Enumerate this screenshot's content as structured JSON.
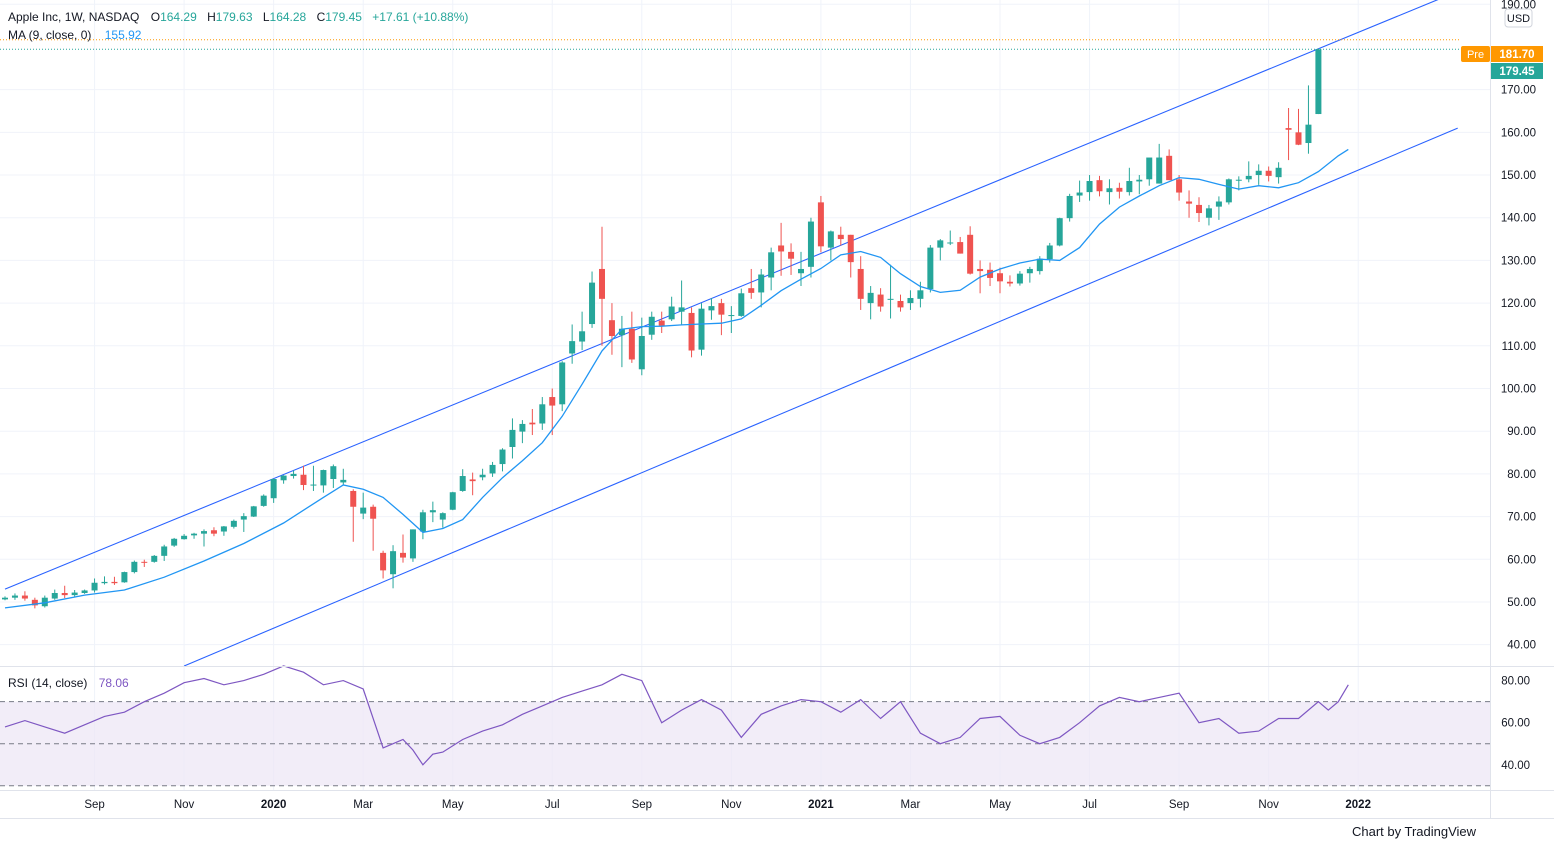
{
  "header": {
    "name": "Apple Inc, 1W, NASDAQ",
    "o_label": "O",
    "o": "164.29",
    "h_label": "H",
    "h": "179.63",
    "l_label": "L",
    "l": "164.28",
    "c_label": "C",
    "c": "179.45",
    "change": "+17.61 (+10.88%)",
    "ma_label": "MA (9, close, 0)",
    "ma_value": "155.92",
    "rsi_label": "RSI (14, close)",
    "rsi_value": "78.06"
  },
  "currency": "USD",
  "premarket": {
    "label": "Pre",
    "value": "181.70",
    "color": "#ff9800"
  },
  "last_price": {
    "value": "179.45",
    "color": "#26a69a"
  },
  "footer": "Chart by TradingView",
  "colors": {
    "up": "#26a69a",
    "down": "#ef5350",
    "ma": "#2196f3",
    "channel": "#2962ff",
    "rsi": "#7e57c2"
  },
  "chart_data": {
    "type": "candlestick",
    "symbol": "AAPL",
    "interval": "1W",
    "price_axis": {
      "ticks": [
        40,
        50,
        60,
        70,
        80,
        90,
        100,
        110,
        120,
        130,
        140,
        150,
        160,
        170,
        190
      ],
      "ylim": [
        35,
        191
      ]
    },
    "rsi_axis": {
      "ticks": [
        40,
        60,
        80
      ],
      "ylim": [
        28,
        86
      ],
      "bands": [
        30,
        50,
        70
      ]
    },
    "time_axis": [
      {
        "label": "Sep",
        "index": 9,
        "bold": false
      },
      {
        "label": "Nov",
        "index": 18,
        "bold": false
      },
      {
        "label": "2020",
        "index": 27,
        "bold": true
      },
      {
        "label": "Mar",
        "index": 36,
        "bold": false
      },
      {
        "label": "May",
        "index": 45,
        "bold": false
      },
      {
        "label": "Jul",
        "index": 55,
        "bold": false
      },
      {
        "label": "Sep",
        "index": 64,
        "bold": false
      },
      {
        "label": "Nov",
        "index": 73,
        "bold": false
      },
      {
        "label": "2021",
        "index": 82,
        "bold": true
      },
      {
        "label": "Mar",
        "index": 91,
        "bold": false
      },
      {
        "label": "May",
        "index": 100,
        "bold": false
      },
      {
        "label": "Jul",
        "index": 109,
        "bold": false
      },
      {
        "label": "Sep",
        "index": 118,
        "bold": false
      },
      {
        "label": "Nov",
        "index": 127,
        "bold": false
      },
      {
        "label": "2022",
        "index": 136,
        "bold": true
      }
    ],
    "channel": [
      {
        "x1": 0,
        "y1": 53,
        "x2": 146,
        "y2": 193
      },
      {
        "x1": 18,
        "y1": 35,
        "x2": 146,
        "y2": 161
      }
    ],
    "candles": [
      [
        50.6,
        51.3,
        50.4,
        51.0
      ],
      [
        51.0,
        52.0,
        50.5,
        51.5
      ],
      [
        51.5,
        52.5,
        50.3,
        50.8
      ],
      [
        50.5,
        51.0,
        48.5,
        49.2
      ],
      [
        49.0,
        51.5,
        48.7,
        51.0
      ],
      [
        50.8,
        52.9,
        50.5,
        52.1
      ],
      [
        52.1,
        53.8,
        50.9,
        51.6
      ],
      [
        51.6,
        52.8,
        51.2,
        52.2
      ],
      [
        52.1,
        52.9,
        51.9,
        52.7
      ],
      [
        52.7,
        55.5,
        52.2,
        54.5
      ],
      [
        54.4,
        56.0,
        54.1,
        54.7
      ],
      [
        54.7,
        55.9,
        54.0,
        54.4
      ],
      [
        54.6,
        57.1,
        54.5,
        57.0
      ],
      [
        57.0,
        59.7,
        56.7,
        59.4
      ],
      [
        59.4,
        59.9,
        58.2,
        59.2
      ],
      [
        59.4,
        61.0,
        59.2,
        60.8
      ],
      [
        60.8,
        63.4,
        59.6,
        63.0
      ],
      [
        63.2,
        65.0,
        62.9,
        64.8
      ],
      [
        64.7,
        65.9,
        64.6,
        65.5
      ],
      [
        65.6,
        66.2,
        64.8,
        66.0
      ],
      [
        66.0,
        67.0,
        63.0,
        66.6
      ],
      [
        66.8,
        67.5,
        65.4,
        66.0
      ],
      [
        66.5,
        67.8,
        65.5,
        67.7
      ],
      [
        67.6,
        69.3,
        67.2,
        69.0
      ],
      [
        69.3,
        70.8,
        66.4,
        70.1
      ],
      [
        70.0,
        72.5,
        69.9,
        72.4
      ],
      [
        72.5,
        75.2,
        72.3,
        74.9
      ],
      [
        74.3,
        78.9,
        73.2,
        78.8
      ],
      [
        78.5,
        79.7,
        77.7,
        79.6
      ],
      [
        79.5,
        80.8,
        78.9,
        80.0
      ],
      [
        79.8,
        81.9,
        76.2,
        77.4
      ],
      [
        77.5,
        81.9,
        76.0,
        77.5
      ],
      [
        77.3,
        81.0,
        75.6,
        80.9
      ],
      [
        78.8,
        82.2,
        76.7,
        81.8
      ],
      [
        78.0,
        81.2,
        77.5,
        78.6
      ],
      [
        76.0,
        76.4,
        64.1,
        72.3
      ],
      [
        70.7,
        75.6,
        69.4,
        72.1
      ],
      [
        72.3,
        72.8,
        62.0,
        69.5
      ],
      [
        61.5,
        62.0,
        55.5,
        57.4
      ],
      [
        56.5,
        63.3,
        53.2,
        61.9
      ],
      [
        61.5,
        65.8,
        59.2,
        60.4
      ],
      [
        60.2,
        67.0,
        59.4,
        67.0
      ],
      [
        66.5,
        71.6,
        64.7,
        71.0
      ],
      [
        71.0,
        73.5,
        68.7,
        71.5
      ],
      [
        69.3,
        71.0,
        67.4,
        70.8
      ],
      [
        71.6,
        75.8,
        71.5,
        75.7
      ],
      [
        76.0,
        81.1,
        75.8,
        79.5
      ],
      [
        78.7,
        80.3,
        75.0,
        78.3
      ],
      [
        79.2,
        81.2,
        78.5,
        79.8
      ],
      [
        80.1,
        82.8,
        79.3,
        82.1
      ],
      [
        82.3,
        86.0,
        80.6,
        85.7
      ],
      [
        86.3,
        93.0,
        83.6,
        90.3
      ],
      [
        89.9,
        92.6,
        87.2,
        91.7
      ],
      [
        92.0,
        95.2,
        89.1,
        91.6
      ],
      [
        91.8,
        98.0,
        90.3,
        96.3
      ],
      [
        98.0,
        100.0,
        89.1,
        96.0
      ],
      [
        96.3,
        106.4,
        94.7,
        106.1
      ],
      [
        108.2,
        115.0,
        105.8,
        111.1
      ],
      [
        111.0,
        118.0,
        109.0,
        113.4
      ],
      [
        115.1,
        127.4,
        114.2,
        124.8
      ],
      [
        128.0,
        137.9,
        110.0,
        121.0
      ],
      [
        116.0,
        120.0,
        107.9,
        112.3
      ],
      [
        112.5,
        117.0,
        105.0,
        114.0
      ],
      [
        114.0,
        118.0,
        106.0,
        106.8
      ],
      [
        104.5,
        116.6,
        103.1,
        112.3
      ],
      [
        112.6,
        118.0,
        111.4,
        116.8
      ],
      [
        115.9,
        118.0,
        113.0,
        114.7
      ],
      [
        116.2,
        121.5,
        115.8,
        119.2
      ],
      [
        118.0,
        125.3,
        115.0,
        119.0
      ],
      [
        117.7,
        119.0,
        107.3,
        108.9
      ],
      [
        109.1,
        120.0,
        107.7,
        118.7
      ],
      [
        118.3,
        121.2,
        116.1,
        119.3
      ],
      [
        120.0,
        121.0,
        112.5,
        117.3
      ],
      [
        117.2,
        119.3,
        113.0,
        117.2
      ],
      [
        117.0,
        123.4,
        116.8,
        122.3
      ],
      [
        123.5,
        128.0,
        121.0,
        122.4
      ],
      [
        122.5,
        128.0,
        119.0,
        126.7
      ],
      [
        126.0,
        133.0,
        123.0,
        131.9
      ],
      [
        133.5,
        138.8,
        126.4,
        132.1
      ],
      [
        132.0,
        134.0,
        126.6,
        130.4
      ],
      [
        127.0,
        132.0,
        124.0,
        128.0
      ],
      [
        128.5,
        140.0,
        126.0,
        139.1
      ],
      [
        143.6,
        145.1,
        131.9,
        133.3
      ],
      [
        133.0,
        137.0,
        130.0,
        136.8
      ],
      [
        136.0,
        137.9,
        133.5,
        135.0
      ],
      [
        136.0,
        136.0,
        126.0,
        129.6
      ],
      [
        128.0,
        131.0,
        118.4,
        121.0
      ],
      [
        120.0,
        124.0,
        116.2,
        122.4
      ],
      [
        122.0,
        123.5,
        118.0,
        119.2
      ],
      [
        121.0,
        129.0,
        116.4,
        121.0
      ],
      [
        120.5,
        122.0,
        118.0,
        119.0
      ],
      [
        120.0,
        123.0,
        118.4,
        121.2
      ],
      [
        121.0,
        125.0,
        119.0,
        123.0
      ],
      [
        123.3,
        133.6,
        122.5,
        133.0
      ],
      [
        133.0,
        135.0,
        130.0,
        134.7
      ],
      [
        134.0,
        137.0,
        133.6,
        134.2
      ],
      [
        134.3,
        135.5,
        131.6,
        131.6
      ],
      [
        136.0,
        138.0,
        126.7,
        126.9
      ],
      [
        128.0,
        130.0,
        122.3,
        127.5
      ],
      [
        127.8,
        129.5,
        124.0,
        125.9
      ],
      [
        127.0,
        128.3,
        122.3,
        125.1
      ],
      [
        125.0,
        126.5,
        123.9,
        124.6
      ],
      [
        124.6,
        127.5,
        124.1,
        126.9
      ],
      [
        127.0,
        128.5,
        124.8,
        128.0
      ],
      [
        127.5,
        131.0,
        126.7,
        130.4
      ],
      [
        130.3,
        134.1,
        129.5,
        133.5
      ],
      [
        133.5,
        140.0,
        133.3,
        139.9
      ],
      [
        139.9,
        145.6,
        139.1,
        145.1
      ],
      [
        145.2,
        148.7,
        143.7,
        145.9
      ],
      [
        146.0,
        150.0,
        144.0,
        148.6
      ],
      [
        148.8,
        149.8,
        145.0,
        146.2
      ],
      [
        146.0,
        149.0,
        143.1,
        146.9
      ],
      [
        147.0,
        148.2,
        144.5,
        146.1
      ],
      [
        146.0,
        151.7,
        145.2,
        148.6
      ],
      [
        148.5,
        150.0,
        145.5,
        148.9
      ],
      [
        149.0,
        153.1,
        147.5,
        154.1
      ],
      [
        148.0,
        157.3,
        148.0,
        154.1
      ],
      [
        154.5,
        156.0,
        148.8,
        148.8
      ],
      [
        149.0,
        150.0,
        144.0,
        145.9
      ],
      [
        143.8,
        146.4,
        140.0,
        143.3
      ],
      [
        143.0,
        144.8,
        139.0,
        141.1
      ],
      [
        140.0,
        143.0,
        138.2,
        142.2
      ],
      [
        142.6,
        145.0,
        139.5,
        143.8
      ],
      [
        143.6,
        149.2,
        143.1,
        149.0
      ],
      [
        148.7,
        149.7,
        146.4,
        148.9
      ],
      [
        149.0,
        153.2,
        148.3,
        149.8
      ],
      [
        150.0,
        152.5,
        147.7,
        151.0
      ],
      [
        151.0,
        152.0,
        148.5,
        149.8
      ],
      [
        149.5,
        153.0,
        148.0,
        151.7
      ],
      [
        161.0,
        165.7,
        153.5,
        160.6
      ],
      [
        160.0,
        165.5,
        157.0,
        157.1
      ],
      [
        157.5,
        171.0,
        155.0,
        161.8
      ],
      [
        164.29,
        179.63,
        164.28,
        179.45
      ]
    ],
    "ma_9": [
      [
        0,
        48.6
      ],
      [
        4,
        49.8
      ],
      [
        8,
        51.6
      ],
      [
        12,
        52.8
      ],
      [
        16,
        55.8
      ],
      [
        20,
        59.6
      ],
      [
        24,
        63.7
      ],
      [
        28,
        68.5
      ],
      [
        32,
        74.5
      ],
      [
        34,
        77.4
      ],
      [
        36,
        76.4
      ],
      [
        38,
        74.5
      ],
      [
        40,
        70.5
      ],
      [
        42,
        66.3
      ],
      [
        44,
        67.2
      ],
      [
        46,
        69.3
      ],
      [
        48,
        74.5
      ],
      [
        50,
        79.1
      ],
      [
        52,
        83.1
      ],
      [
        54,
        87.3
      ],
      [
        56,
        93.5
      ],
      [
        58,
        101.0
      ],
      [
        60,
        108.8
      ],
      [
        62,
        113.9
      ],
      [
        64,
        114.5
      ],
      [
        66,
        114.6
      ],
      [
        68,
        114.9
      ],
      [
        70,
        115.1
      ],
      [
        72,
        115.3
      ],
      [
        74,
        116.3
      ],
      [
        76,
        119.5
      ],
      [
        78,
        122.9
      ],
      [
        80,
        125.6
      ],
      [
        82,
        128.1
      ],
      [
        84,
        131.3
      ],
      [
        86,
        132.1
      ],
      [
        88,
        130.7
      ],
      [
        90,
        126.9
      ],
      [
        92,
        123.9
      ],
      [
        94,
        122.5
      ],
      [
        96,
        123.0
      ],
      [
        98,
        126.1
      ],
      [
        100,
        128.0
      ],
      [
        102,
        129.4
      ],
      [
        104,
        130.3
      ],
      [
        106,
        130.0
      ],
      [
        108,
        133.0
      ],
      [
        110,
        138.5
      ],
      [
        112,
        142.5
      ],
      [
        114,
        145.1
      ],
      [
        116,
        147.5
      ],
      [
        118,
        149.4
      ],
      [
        120,
        149.0
      ],
      [
        122,
        147.8
      ],
      [
        124,
        146.7
      ],
      [
        126,
        147.5
      ],
      [
        128,
        147.0
      ],
      [
        130,
        148.2
      ],
      [
        132,
        150.8
      ],
      [
        134,
        154.5
      ],
      [
        135,
        156.0
      ]
    ],
    "rsi": [
      [
        0,
        58
      ],
      [
        2,
        61
      ],
      [
        4,
        58
      ],
      [
        6,
        55
      ],
      [
        8,
        59
      ],
      [
        10,
        63
      ],
      [
        12,
        65
      ],
      [
        14,
        70
      ],
      [
        16,
        74
      ],
      [
        18,
        79
      ],
      [
        20,
        81
      ],
      [
        22,
        78
      ],
      [
        24,
        80
      ],
      [
        26,
        83
      ],
      [
        28,
        87
      ],
      [
        30,
        84
      ],
      [
        32,
        78
      ],
      [
        34,
        80
      ],
      [
        36,
        76
      ],
      [
        38,
        48
      ],
      [
        40,
        52
      ],
      [
        41,
        47
      ],
      [
        42,
        40
      ],
      [
        43,
        45
      ],
      [
        44,
        46
      ],
      [
        46,
        52
      ],
      [
        48,
        56
      ],
      [
        50,
        59
      ],
      [
        52,
        64
      ],
      [
        54,
        68
      ],
      [
        56,
        72
      ],
      [
        58,
        75
      ],
      [
        60,
        78
      ],
      [
        62,
        83
      ],
      [
        64,
        80
      ],
      [
        66,
        60
      ],
      [
        68,
        66
      ],
      [
        70,
        71
      ],
      [
        72,
        66
      ],
      [
        74,
        53
      ],
      [
        76,
        64
      ],
      [
        78,
        68
      ],
      [
        80,
        71
      ],
      [
        82,
        70
      ],
      [
        84,
        65
      ],
      [
        86,
        71
      ],
      [
        88,
        62
      ],
      [
        90,
        70
      ],
      [
        92,
        55
      ],
      [
        94,
        50
      ],
      [
        96,
        53
      ],
      [
        98,
        62
      ],
      [
        100,
        63
      ],
      [
        102,
        54
      ],
      [
        104,
        50
      ],
      [
        106,
        53
      ],
      [
        108,
        60
      ],
      [
        110,
        68
      ],
      [
        112,
        72
      ],
      [
        114,
        70
      ],
      [
        116,
        72
      ],
      [
        118,
        74
      ],
      [
        120,
        60
      ],
      [
        122,
        62
      ],
      [
        124,
        55
      ],
      [
        126,
        56
      ],
      [
        128,
        62
      ],
      [
        130,
        62
      ],
      [
        132,
        70
      ],
      [
        133,
        66
      ],
      [
        134,
        70
      ],
      [
        135,
        78
      ]
    ]
  }
}
